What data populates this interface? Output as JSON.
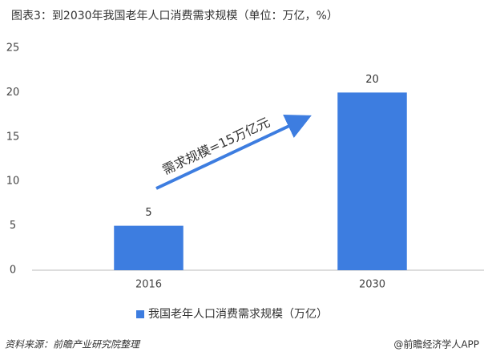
{
  "chart_data": {
    "type": "bar",
    "title": "图表3：到2030年我国老年人口消费需求规模（单位：万亿，%）",
    "categories": [
      "2016",
      "2030"
    ],
    "values": [
      5,
      20
    ],
    "color": "#3d7de0",
    "series_name": "我国老年人口消费需求规模（万亿）",
    "ylim": [
      0,
      25
    ],
    "yticks": [
      0,
      5,
      10,
      15,
      20,
      25
    ],
    "grid": false,
    "annotation": "需求规模=15万亿元",
    "source": "资料来源：前瞻产业研究院整理",
    "watermark": "@前瞻经济学人APP"
  }
}
